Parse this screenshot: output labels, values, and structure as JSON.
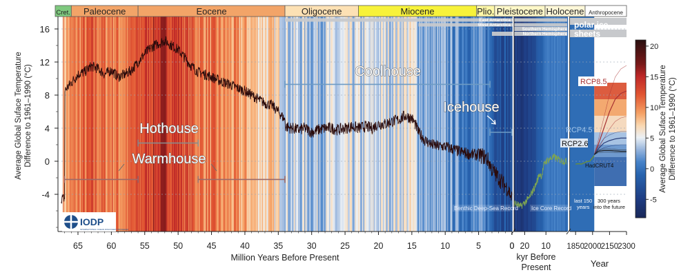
{
  "chart_data": {
    "type": "line",
    "xlabel": "Million Years Before Present",
    "xlabel_kyr": "kyr Before Present",
    "xlabel_year": "Year",
    "ylabel": "Average Global Suface Temperature Difference to 1961–1990 (°C)",
    "colorbar_label": "Average Global Suface Temperature Difference to 1961–1990 (°C)",
    "ylim": [
      -8.5,
      17.5
    ],
    "yticks": [
      "16",
      "12",
      "8",
      "4",
      "0",
      "-4"
    ],
    "colorbar_ticks": [
      "20",
      "15",
      "10",
      "5",
      "0",
      "-5"
    ],
    "colorbar_range": [
      -8,
      21
    ],
    "xticks_myr": [
      "65",
      "60",
      "55",
      "50",
      "45",
      "40",
      "35",
      "30",
      "25",
      "20",
      "15",
      "10",
      "5",
      "0"
    ],
    "xticks_kyr": [
      "20",
      "10"
    ],
    "xticks_year": [
      "1850",
      "2000",
      "2150",
      "2300"
    ],
    "epochs": [
      {
        "name": "Cret.",
        "color": "#7fc97f"
      },
      {
        "name": "Paleocene",
        "color": "#f2a468"
      },
      {
        "name": "Eocene",
        "color": "#f2a468"
      },
      {
        "name": "Oligocene",
        "color": "#fde1b4"
      },
      {
        "name": "Miocene",
        "color": "#f7f23a"
      },
      {
        "name": "Plio.",
        "color": "#fdf7a8"
      },
      {
        "name": "Pleistocene",
        "color": "#fdf7c8"
      },
      {
        "name": "Holocene",
        "color": "#fdf7d8"
      },
      {
        "name": "Anthropocene",
        "color": "#ffffff"
      }
    ],
    "ice_sheets": {
      "title_line1": "polar ice",
      "title_line2": "sheets",
      "rows": [
        "East Antarctica",
        "West Antarctica",
        "Southern Hemisphere",
        "Northern Hemisphere"
      ]
    },
    "climate_states": [
      "Hothouse",
      "Warmhouse",
      "Coolhouse",
      "Icehouse"
    ],
    "annotations": [
      "Benthic Deep-Sea Record",
      "Ice Core Record",
      "HadCRUT4",
      "last 150 years",
      "300 years into the future"
    ],
    "logo_text": "IODP",
    "logo_subtext": "INTERNATIONAL OCEAN DISCOVERY PROGRAM",
    "deep_time_series": {
      "name": "Benthic Deep-Sea Record",
      "x_myr": [
        67,
        66,
        65,
        64,
        63,
        62,
        61,
        60,
        59,
        58,
        57,
        56,
        55,
        54,
        53,
        52,
        51,
        50,
        49,
        48,
        47,
        46,
        45,
        44,
        43,
        42,
        41,
        40,
        39,
        38,
        37,
        36,
        35,
        34,
        33.9,
        33,
        32,
        31,
        30,
        29,
        28,
        27,
        26,
        25,
        24,
        23,
        22,
        21,
        20,
        19,
        18,
        17,
        16,
        15,
        14.5,
        14,
        13.5,
        13,
        12,
        11,
        10,
        9,
        8,
        7,
        6,
        5,
        4,
        3.5,
        3,
        2.5,
        2,
        1.5,
        1,
        0.5,
        0
      ],
      "y": [
        8.5,
        9.5,
        10.5,
        10.8,
        11.5,
        11.2,
        10.5,
        11.0,
        10.2,
        10.5,
        11.0,
        12.0,
        13.0,
        13.8,
        14.2,
        14.6,
        14.0,
        13.5,
        12.5,
        11.5,
        10.8,
        10.5,
        10.2,
        9.8,
        9.5,
        9.2,
        8.8,
        8.5,
        8.0,
        7.5,
        7.0,
        6.8,
        6.0,
        5.0,
        4.2,
        4.0,
        3.8,
        4.0,
        3.5,
        3.8,
        4.0,
        4.0,
        3.8,
        4.0,
        4.2,
        4.0,
        4.2,
        4.0,
        4.5,
        4.5,
        4.8,
        5.0,
        5.5,
        5.2,
        4.5,
        3.5,
        3.0,
        2.5,
        2.0,
        1.8,
        1.8,
        1.5,
        1.2,
        1.0,
        0.8,
        0.8,
        0.5,
        0.0,
        -1.0,
        -1.5,
        -2.0,
        -2.5,
        -3.0,
        -3.5,
        -4.5
      ]
    },
    "ice_core_series": {
      "name": "Ice Core Record",
      "x_kyr": [
        25,
        22,
        20,
        18,
        15,
        13,
        12,
        11,
        10,
        8,
        6,
        4,
        2,
        0
      ],
      "y": [
        -5.0,
        -5.5,
        -5.0,
        -4.5,
        -3.0,
        -1.5,
        -1.8,
        -0.5,
        0.0,
        0.3,
        0.5,
        0.2,
        0.0,
        0.0
      ]
    },
    "hadcrut4_series": {
      "name": "HadCRUT4",
      "x_year": [
        1850,
        1875,
        1900,
        1925,
        1950,
        1975,
        2000,
        2015
      ],
      "y": [
        -0.35,
        -0.3,
        -0.35,
        -0.2,
        -0.05,
        0.0,
        0.4,
        0.7
      ]
    },
    "projections": [
      {
        "name": "RCP8.5",
        "x_year": [
          2015,
          2050,
          2100,
          2150,
          2200,
          2250,
          2300
        ],
        "y": [
          0.8,
          2.0,
          4.0,
          6.0,
          7.5,
          8.2,
          8.5
        ],
        "color": "#a83232"
      },
      {
        "name": "RCP4.5",
        "x_year": [
          2015,
          2050,
          2100,
          2150,
          2200,
          2250,
          2300
        ],
        "y": [
          0.8,
          1.5,
          2.2,
          2.5,
          2.7,
          2.8,
          2.8
        ],
        "color": "#2a3e7a"
      },
      {
        "name": "RCP2.6",
        "x_year": [
          2015,
          2050,
          2100,
          2150,
          2200,
          2250,
          2300
        ],
        "y": [
          0.8,
          1.2,
          1.3,
          1.3,
          1.25,
          1.2,
          1.2
        ],
        "color": "#1c1c1c"
      }
    ]
  }
}
